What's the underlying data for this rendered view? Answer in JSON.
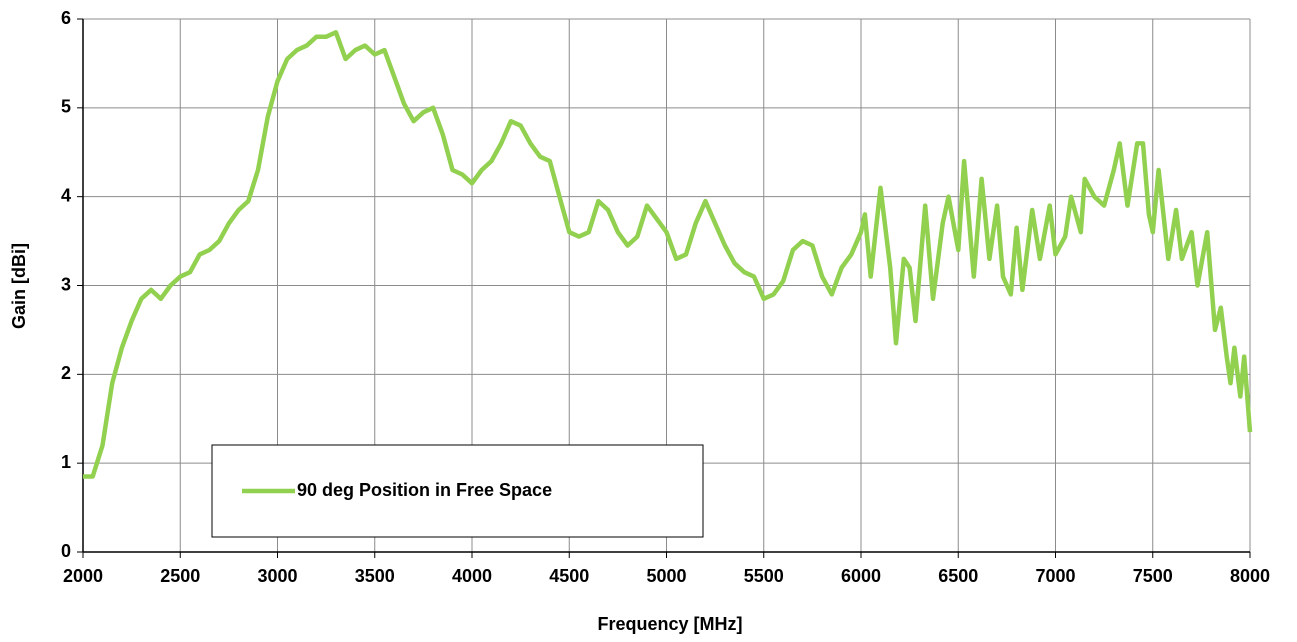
{
  "chart_data": {
    "type": "line",
    "xlabel": "Frequency [MHz]",
    "ylabel": "Gain [dBi]",
    "xlim": [
      2000,
      8000
    ],
    "xticks": [
      2000,
      2500,
      3000,
      3500,
      4000,
      4500,
      5000,
      5500,
      6000,
      6500,
      7000,
      7500,
      8000
    ],
    "ylim": [
      0,
      6
    ],
    "yticks": [
      0,
      1,
      2,
      3,
      4,
      5,
      6
    ],
    "grid": true,
    "legend": "lower left",
    "x": [
      2000,
      2050,
      2100,
      2150,
      2200,
      2250,
      2300,
      2350,
      2400,
      2450,
      2500,
      2550,
      2600,
      2650,
      2700,
      2750,
      2800,
      2850,
      2900,
      2950,
      3000,
      3050,
      3100,
      3150,
      3200,
      3250,
      3300,
      3350,
      3400,
      3450,
      3500,
      3550,
      3600,
      3650,
      3700,
      3750,
      3800,
      3850,
      3900,
      3950,
      4000,
      4050,
      4100,
      4150,
      4200,
      4250,
      4300,
      4350,
      4400,
      4450,
      4500,
      4550,
      4600,
      4650,
      4700,
      4750,
      4800,
      4850,
      4900,
      4950,
      5000,
      5050,
      5100,
      5150,
      5200,
      5250,
      5300,
      5350,
      5400,
      5450,
      5500,
      5550,
      5600,
      5650,
      5700,
      5750,
      5800,
      5850,
      5900,
      5950,
      6000,
      6020,
      6050,
      6100,
      6150,
      6180,
      6220,
      6250,
      6280,
      6330,
      6370,
      6420,
      6450,
      6500,
      6530,
      6580,
      6620,
      6660,
      6700,
      6730,
      6770,
      6800,
      6830,
      6880,
      6920,
      6970,
      7000,
      7050,
      7080,
      7130,
      7150,
      7200,
      7250,
      7300,
      7330,
      7370,
      7420,
      7450,
      7480,
      7500,
      7530,
      7580,
      7620,
      7650,
      7700,
      7730,
      7780,
      7820,
      7850,
      7880,
      7900,
      7920,
      7950,
      7970,
      8000
    ],
    "series": [
      {
        "name": "90 deg Position in Free Space",
        "color": "#92d050",
        "values": [
          0.85,
          0.85,
          1.2,
          1.9,
          2.3,
          2.6,
          2.85,
          2.95,
          2.85,
          3.0,
          3.1,
          3.15,
          3.35,
          3.4,
          3.5,
          3.7,
          3.85,
          3.95,
          4.3,
          4.9,
          5.3,
          5.55,
          5.65,
          5.7,
          5.8,
          5.8,
          5.85,
          5.55,
          5.65,
          5.7,
          5.6,
          5.65,
          5.35,
          5.05,
          4.85,
          4.95,
          5.0,
          4.7,
          4.3,
          4.25,
          4.15,
          4.3,
          4.4,
          4.6,
          4.85,
          4.8,
          4.6,
          4.45,
          4.4,
          4.0,
          3.6,
          3.55,
          3.6,
          3.95,
          3.85,
          3.6,
          3.45,
          3.55,
          3.9,
          3.75,
          3.6,
          3.3,
          3.35,
          3.7,
          3.95,
          3.7,
          3.45,
          3.25,
          3.15,
          3.1,
          2.85,
          2.9,
          3.05,
          3.4,
          3.5,
          3.45,
          3.1,
          2.9,
          3.2,
          3.35,
          3.6,
          3.8,
          3.1,
          4.1,
          3.2,
          2.35,
          3.3,
          3.2,
          2.6,
          3.9,
          2.85,
          3.7,
          4.0,
          3.4,
          4.4,
          3.1,
          4.2,
          3.3,
          3.9,
          3.1,
          2.9,
          3.65,
          2.95,
          3.85,
          3.3,
          3.9,
          3.35,
          3.55,
          4.0,
          3.6,
          4.2,
          4.0,
          3.9,
          4.3,
          4.6,
          3.9,
          4.6,
          4.6,
          3.8,
          3.6,
          4.3,
          3.3,
          3.85,
          3.3,
          3.6,
          3.0,
          3.6,
          2.5,
          2.75,
          2.2,
          1.9,
          2.3,
          1.75,
          2.2,
          1.35
        ]
      }
    ]
  }
}
